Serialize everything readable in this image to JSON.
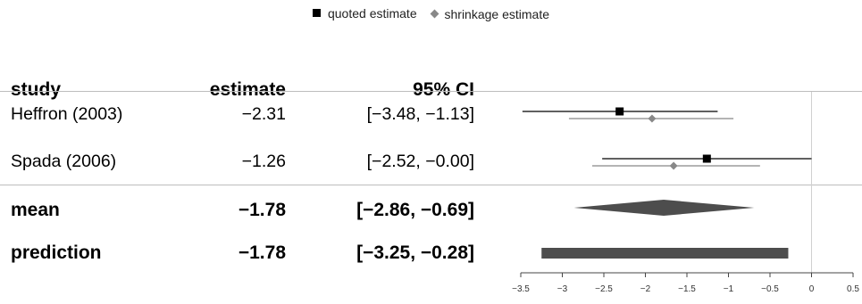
{
  "legend": {
    "quoted_label": "quoted estimate",
    "shrinkage_label": "shrinkage estimate"
  },
  "table": {
    "headers": {
      "study": "study",
      "estimate": "estimate",
      "ci": "95% CI"
    },
    "rows": [
      {
        "study": "Heffron (2003)",
        "estimate": "−2.31",
        "ci": "[−3.48, −1.13]"
      },
      {
        "study": "Spada (2006)",
        "estimate": "−1.26",
        "ci": "[−2.52, −0.00]"
      }
    ],
    "summary": [
      {
        "label": "mean",
        "estimate": "−1.78",
        "ci": "[−2.86, −0.69]"
      },
      {
        "label": "prediction",
        "estimate": "−1.78",
        "ci": "[−3.25, −0.28]"
      }
    ]
  },
  "chart_data": {
    "type": "forest",
    "xlim": [
      -3.5,
      0.5
    ],
    "x_ticks": [
      -3.5,
      -3,
      -2.5,
      -2,
      -1.5,
      -1,
      -0.5,
      0,
      0.5
    ],
    "x_tick_labels": [
      "−3.5",
      "−3",
      "−2.5",
      "−2",
      "−1.5",
      "−1",
      "−0.5",
      "0",
      "0.5"
    ],
    "reference_line": 0,
    "studies": [
      {
        "name": "Heffron (2003)",
        "quoted": {
          "estimate": -2.31,
          "lower": -3.48,
          "upper": -1.13
        },
        "shrinkage": {
          "estimate": -1.92,
          "lower": -2.92,
          "upper": -0.94
        }
      },
      {
        "name": "Spada (2006)",
        "quoted": {
          "estimate": -1.26,
          "lower": -2.52,
          "upper": 0.0
        },
        "shrinkage": {
          "estimate": -1.66,
          "lower": -2.64,
          "upper": -0.62
        }
      }
    ],
    "mean": {
      "estimate": -1.78,
      "lower": -2.86,
      "upper": -0.69
    },
    "prediction": {
      "estimate": -1.78,
      "lower": -3.25,
      "upper": -0.28
    },
    "colors": {
      "quoted": "#000000",
      "shrinkage": "#888888",
      "summary": "#4d4d4d",
      "refline": "#d0d0d0"
    }
  }
}
